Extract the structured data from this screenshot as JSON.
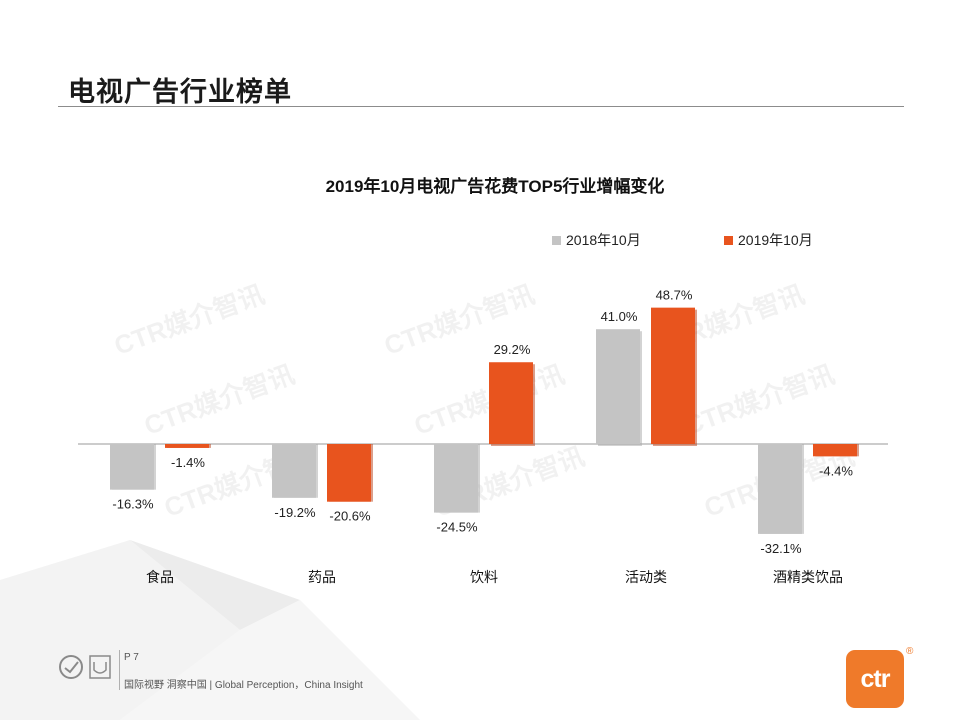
{
  "page": {
    "title": "电视广告行业榜单"
  },
  "watermark_text": "CTR媒介智讯",
  "colors": {
    "series_2018": "#c4c4c4",
    "series_2019": "#e8541e",
    "brand": "#ef7a2a"
  },
  "chart_data": {
    "type": "bar",
    "title": "2019年10月电视广告花费TOP5行业增幅变化",
    "categories": [
      "食品",
      "药品",
      "饮料",
      "活动类",
      "酒精类饮品"
    ],
    "series": [
      {
        "name": "2018年10月",
        "values": [
          -16.3,
          -19.2,
          -24.5,
          41.0,
          -32.1
        ],
        "labels": [
          "-16.3%",
          "-19.2%",
          "-24.5%",
          "41.0%",
          "-32.1%"
        ]
      },
      {
        "name": "2019年10月",
        "values": [
          -1.4,
          -20.6,
          29.2,
          48.7,
          -4.4
        ],
        "labels": [
          "-1.4%",
          "-20.6%",
          "29.2%",
          "48.7%",
          "-4.4%"
        ]
      }
    ],
    "xlabel": "",
    "ylabel": "",
    "ylim": [
      -40,
      60
    ],
    "unit": "%",
    "legend": "top-right"
  },
  "footer": {
    "page_label": "P 7",
    "tagline": "国际视野 洞察中国 | Global Perception，China Insight",
    "brand_logo_text": "ctr",
    "brand_reg": "®"
  }
}
